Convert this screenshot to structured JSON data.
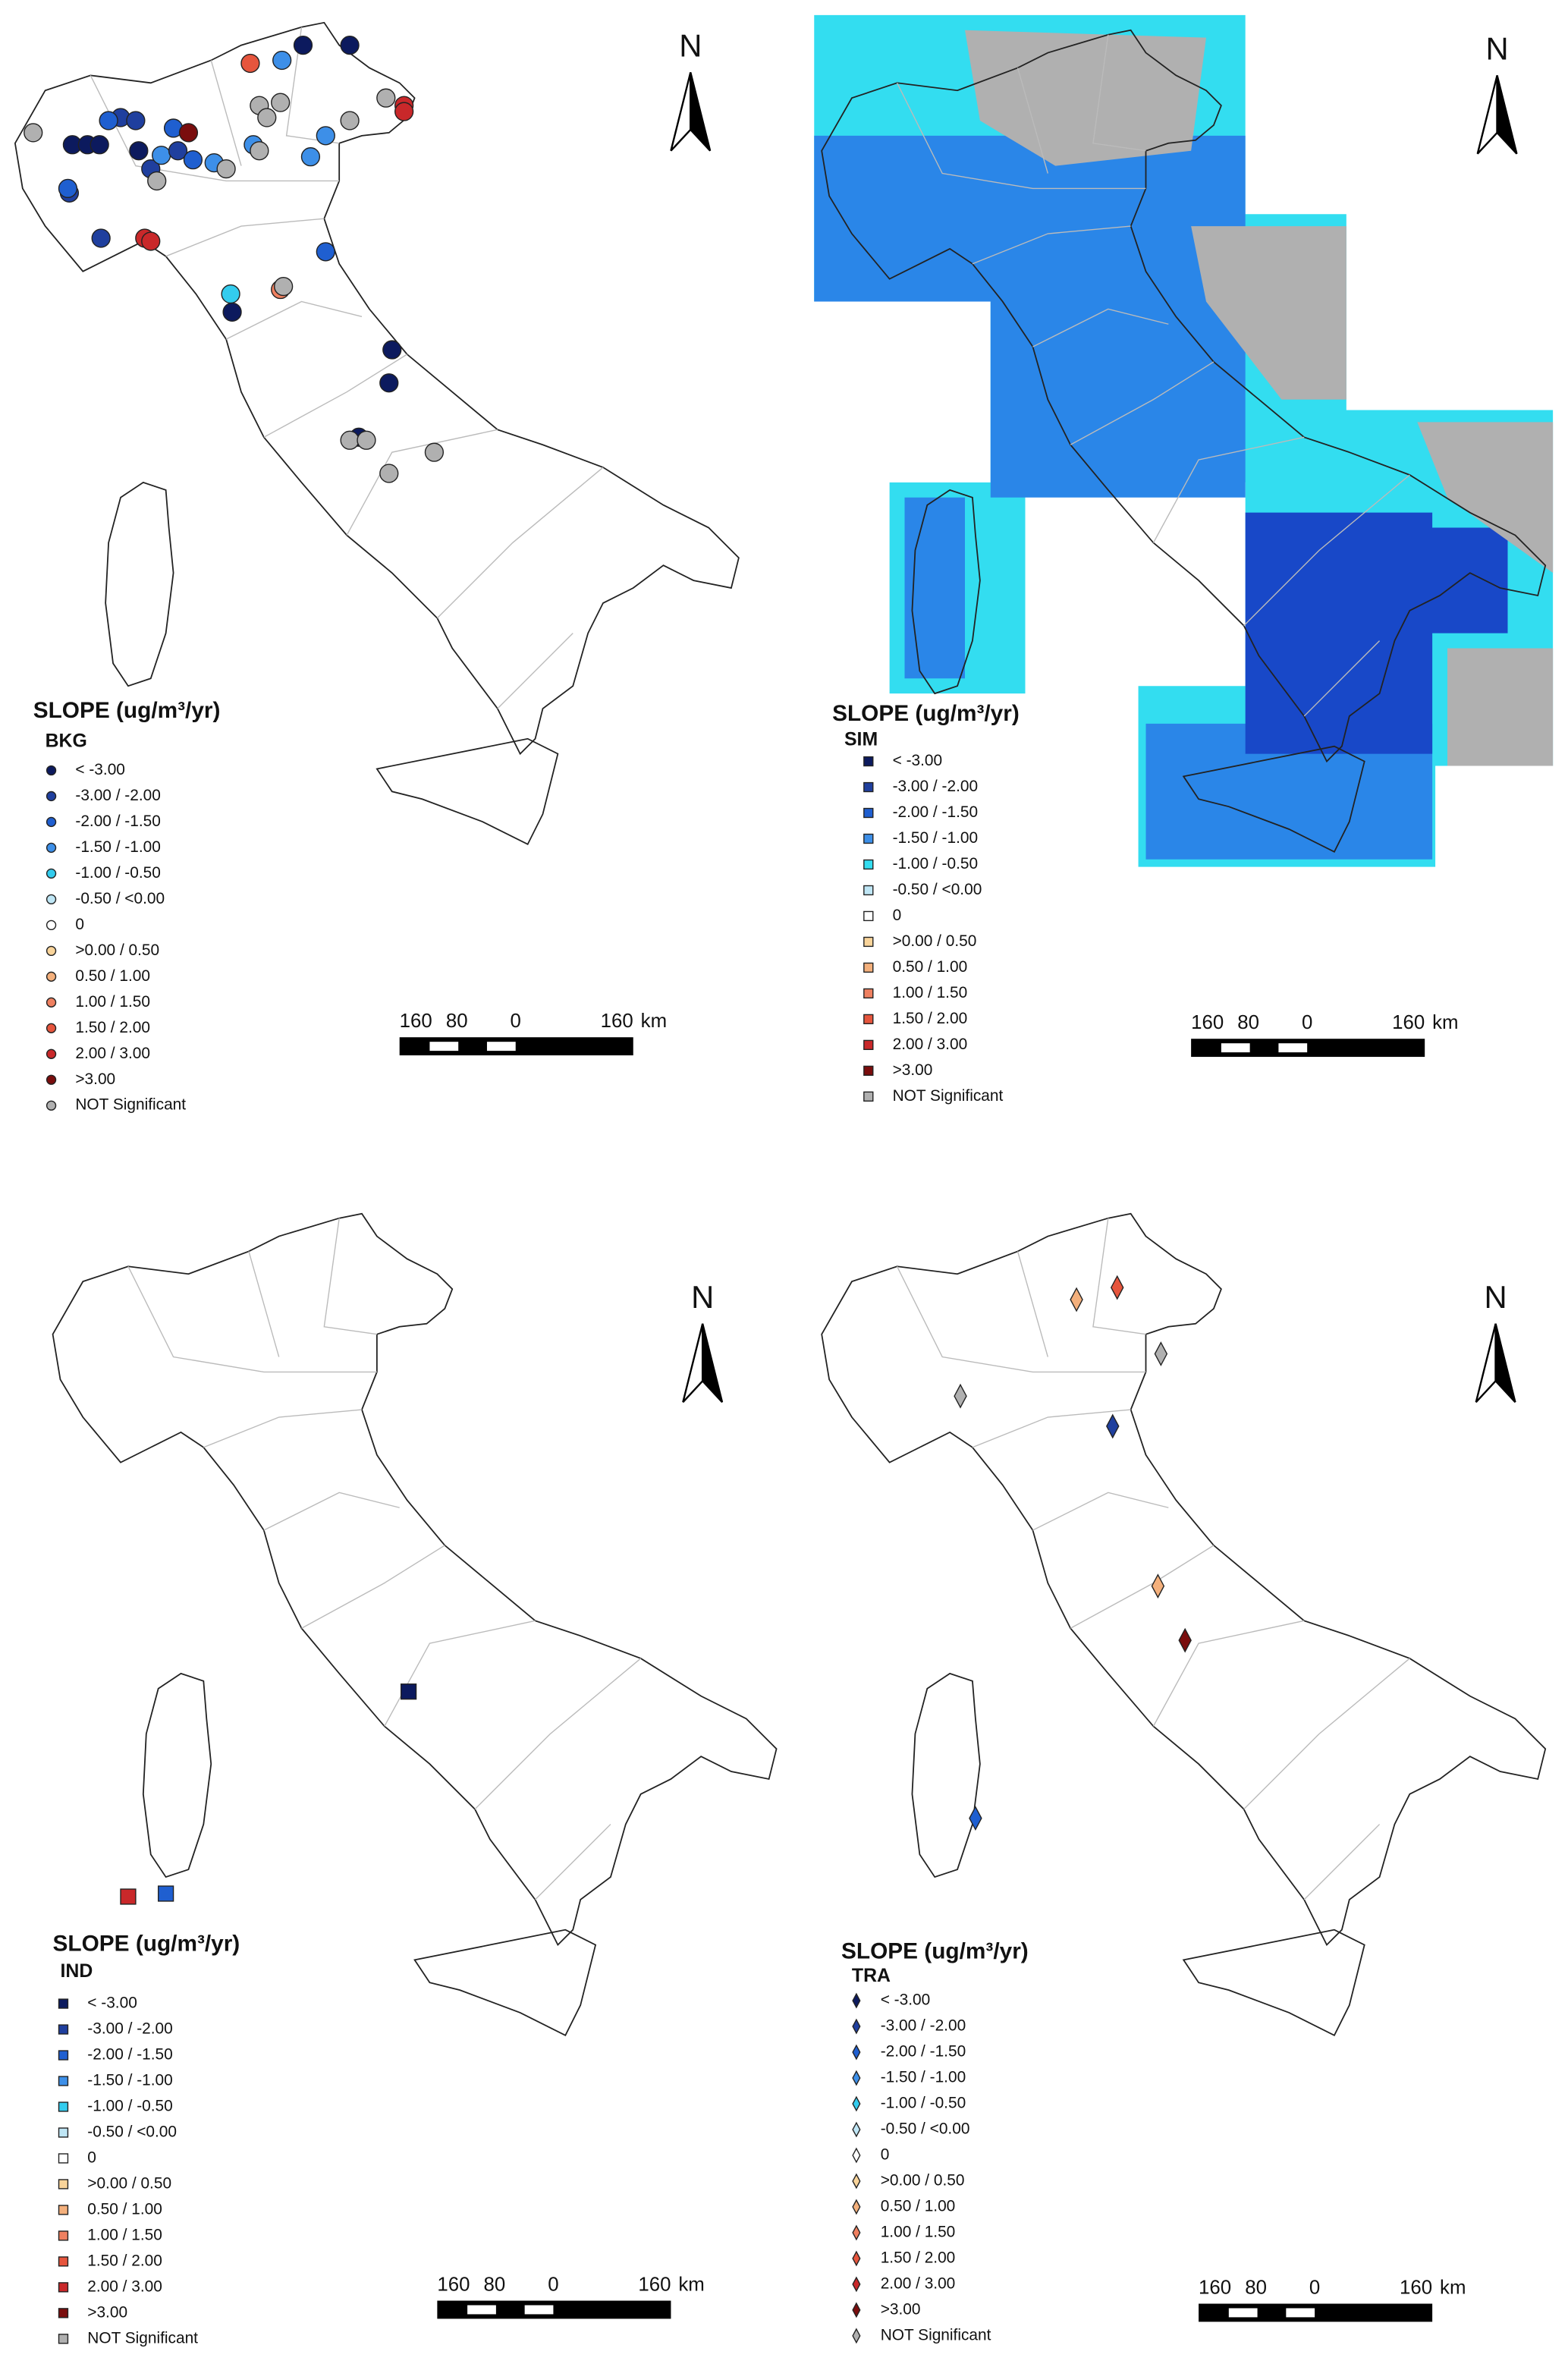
{
  "panels": [
    {
      "title": "SLOPE (ug/m³/yr)",
      "category": "BKG",
      "north": "N",
      "scale_labels": [
        "160",
        "80",
        "0",
        "160"
      ],
      "scale_unit": "km",
      "legend": [
        {
          "label": "< -3.00",
          "color": "#0c1a5e"
        },
        {
          "label": "-3.00 / -2.00",
          "color": "#1f3f9e"
        },
        {
          "label": "-2.00 / -1.50",
          "color": "#1f5fd0"
        },
        {
          "label": "-1.50 / -1.00",
          "color": "#3d8fe8"
        },
        {
          "label": "-1.00 / -0.50",
          "color": "#33ccee"
        },
        {
          "label": "-0.50 / <0.00",
          "color": "#bfe6f5"
        },
        {
          "label": "0",
          "color": "#ffffff"
        },
        {
          "label": ">0.00 / 0.50",
          "color": "#f9d49a"
        },
        {
          "label": "0.50 / 1.00",
          "color": "#f4b07c"
        },
        {
          "label": "1.00 / 1.50",
          "color": "#ef8060"
        },
        {
          "label": "1.50 / 2.00",
          "color": "#e6553d"
        },
        {
          "label": "2.00 / 3.00",
          "color": "#c9282a"
        },
        {
          "label": ">3.00",
          "color": "#7a0d0d"
        },
        {
          "label": "NOT Significant",
          "color": "#b0b0b0"
        }
      ]
    },
    {
      "title": "SLOPE (ug/m³/yr)",
      "category": "SIM",
      "north": "N",
      "scale_labels": [
        "160",
        "80",
        "0",
        "160"
      ],
      "scale_unit": "km",
      "legend": [
        {
          "label": "< -3.00",
          "color": "#0c1a5e"
        },
        {
          "label": "-3.00 / -2.00",
          "color": "#1f3f9e"
        },
        {
          "label": "-2.00 / -1.50",
          "color": "#1f5fd0"
        },
        {
          "label": "-1.50 / -1.00",
          "color": "#3d8fe8"
        },
        {
          "label": "-1.00 / -0.50",
          "color": "#33ddf0"
        },
        {
          "label": "-0.50 / <0.00",
          "color": "#bfe6f5"
        },
        {
          "label": "0",
          "color": "#ffffff"
        },
        {
          "label": ">0.00 / 0.50",
          "color": "#f9d49a"
        },
        {
          "label": "0.50 / 1.00",
          "color": "#f4b07c"
        },
        {
          "label": "1.00 / 1.50",
          "color": "#ef8060"
        },
        {
          "label": "1.50 / 2.00",
          "color": "#e6553d"
        },
        {
          "label": "2.00 / 3.00",
          "color": "#c9282a"
        },
        {
          "label": ">3.00",
          "color": "#7a0d0d"
        },
        {
          "label": "NOT Significant",
          "color": "#b0b0b0"
        }
      ]
    },
    {
      "title": "SLOPE (ug/m³/yr)",
      "category": "IND",
      "north": "N",
      "scale_labels": [
        "160",
        "80",
        "0",
        "160"
      ],
      "scale_unit": "km",
      "legend": [
        {
          "label": "< -3.00",
          "color": "#0c1a5e"
        },
        {
          "label": "-3.00 / -2.00",
          "color": "#1f3f9e"
        },
        {
          "label": "-2.00 / -1.50",
          "color": "#1f5fd0"
        },
        {
          "label": "-1.50 / -1.00",
          "color": "#3d8fe8"
        },
        {
          "label": "-1.00 / -0.50",
          "color": "#33ccee"
        },
        {
          "label": "-0.50 / <0.00",
          "color": "#bfe6f5"
        },
        {
          "label": "0",
          "color": "#ffffff"
        },
        {
          "label": ">0.00 / 0.50",
          "color": "#f9d49a"
        },
        {
          "label": "0.50 / 1.00",
          "color": "#f4b07c"
        },
        {
          "label": "1.00 / 1.50",
          "color": "#ef8060"
        },
        {
          "label": "1.50 / 2.00",
          "color": "#e6553d"
        },
        {
          "label": "2.00 / 3.00",
          "color": "#c9282a"
        },
        {
          "label": ">3.00",
          "color": "#7a0d0d"
        },
        {
          "label": "NOT Significant",
          "color": "#b0b0b0"
        }
      ]
    },
    {
      "title": "SLOPE (ug/m³/yr)",
      "category": "TRA",
      "north": "N",
      "scale_labels": [
        "160",
        "80",
        "0",
        "160"
      ],
      "scale_unit": "km",
      "legend": [
        {
          "label": "< -3.00",
          "color": "#0c1a5e"
        },
        {
          "label": "-3.00 / -2.00",
          "color": "#1f3f9e"
        },
        {
          "label": "-2.00 / -1.50",
          "color": "#1f5fd0"
        },
        {
          "label": "-1.50 / -1.00",
          "color": "#3d8fe8"
        },
        {
          "label": "-1.00 / -0.50",
          "color": "#33ccee"
        },
        {
          "label": "-0.50 / <0.00",
          "color": "#bfe6f5"
        },
        {
          "label": "0",
          "color": "#ffffff"
        },
        {
          "label": ">0.00 / 0.50",
          "color": "#f9d49a"
        },
        {
          "label": "0.50 / 1.00",
          "color": "#f4b07c"
        },
        {
          "label": "1.00 / 1.50",
          "color": "#ef8060"
        },
        {
          "label": "1.50 / 2.00",
          "color": "#e6553d"
        },
        {
          "label": "2.00 / 3.00",
          "color": "#c9282a"
        },
        {
          "label": ">3.00",
          "color": "#7a0d0d"
        },
        {
          "label": "NOT Significant",
          "color": "#b0b0b0"
        }
      ]
    }
  ]
}
